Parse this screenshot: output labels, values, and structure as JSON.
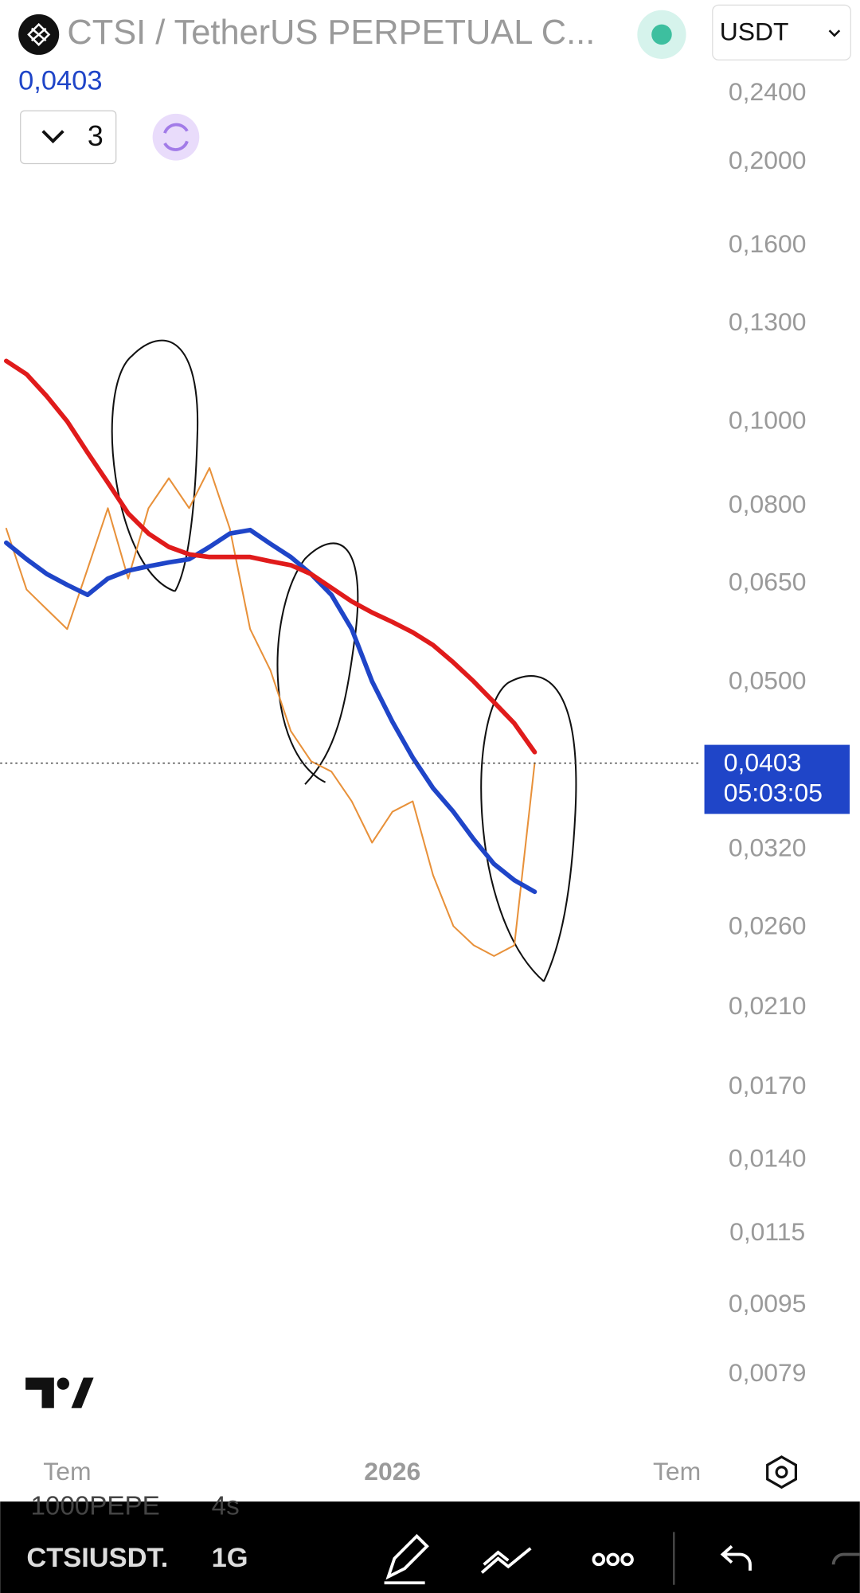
{
  "header": {
    "symbol": "CTSI / TetherUS PERPETUAL C...",
    "quote": "USDT",
    "indicator_count": "3"
  },
  "chart_data": {
    "type": "line",
    "log_scale": true,
    "last_price": {
      "value": 0.0403,
      "label": "0,0403"
    },
    "countdown": "05:03:05",
    "categories": [
      null,
      null,
      null,
      "Tem",
      null,
      null,
      null,
      null,
      null,
      null,
      null,
      null,
      null,
      null,
      null,
      null,
      null,
      null,
      null,
      "2026",
      null,
      null,
      null,
      null,
      null,
      null,
      null,
      null,
      null,
      null,
      null,
      null,
      null,
      "Tem"
    ],
    "ylim": [
      0.0065,
      0.308
    ],
    "yticks": [
      {
        "value": 0.24,
        "label": "0,2400"
      },
      {
        "value": 0.2,
        "label": "0,2000"
      },
      {
        "value": 0.16,
        "label": "0,1600"
      },
      {
        "value": 0.13,
        "label": "0,1300"
      },
      {
        "value": 0.1,
        "label": "0,1000"
      },
      {
        "value": 0.08,
        "label": "0,0800"
      },
      {
        "value": 0.065,
        "label": "0,0650"
      },
      {
        "value": 0.05,
        "label": "0,0500"
      },
      {
        "value": 0.032,
        "label": "0,0320"
      },
      {
        "value": 0.026,
        "label": "0,0260"
      },
      {
        "value": 0.021,
        "label": "0,0210"
      },
      {
        "value": 0.017,
        "label": "0,0170"
      },
      {
        "value": 0.014,
        "label": "0,0140"
      },
      {
        "value": 0.0115,
        "label": "0,0115"
      },
      {
        "value": 0.0095,
        "label": "0,0095"
      },
      {
        "value": 0.0079,
        "label": "0,0079"
      }
    ],
    "series": [
      {
        "color": "#e8913a",
        "values": [
          0.0753,
          0.064,
          0.0607,
          0.0576,
          0.0676,
          0.0795,
          0.0659,
          0.0795,
          0.0861,
          0.0795,
          0.0885,
          0.0753,
          0.0576,
          0.0516,
          0.0439,
          0.0405,
          0.0394,
          0.0364,
          0.0326,
          0.0354,
          0.0364,
          0.0299,
          0.0261,
          0.0248,
          0.0241,
          0.0248,
          0.0403,
          null,
          null,
          null,
          null,
          null,
          null,
          null
        ]
      },
      {
        "color": "#1f45c8",
        "values": [
          0.0725,
          0.0694,
          0.0667,
          0.0648,
          0.0631,
          0.0659,
          0.0673,
          0.0681,
          0.0688,
          0.0694,
          0.0717,
          0.0743,
          0.075,
          0.0723,
          0.0698,
          0.0667,
          0.0631,
          0.0576,
          0.0501,
          0.045,
          0.0409,
          0.0377,
          0.0354,
          0.0329,
          0.0308,
          0.0295,
          0.0286,
          null,
          null,
          null,
          null,
          null,
          null,
          null
        ]
      },
      {
        "color": "#e01b1b",
        "values": [
          0.1177,
          0.1136,
          0.1071,
          0.1002,
          0.0922,
          0.0851,
          0.0784,
          0.0743,
          0.0717,
          0.0703,
          0.0698,
          0.0698,
          0.0698,
          0.069,
          0.0683,
          0.0667,
          0.0643,
          0.062,
          0.0602,
          0.0587,
          0.0571,
          0.0552,
          0.0527,
          0.0501,
          0.0474,
          0.0448,
          0.0415,
          null,
          null,
          null,
          null,
          null,
          null,
          null
        ]
      }
    ]
  },
  "toolbar": {
    "hidden_symbol": "1000PEPE",
    "hidden_change": "4s",
    "symbol": "CTSIUSDT.",
    "interval": "1G"
  }
}
